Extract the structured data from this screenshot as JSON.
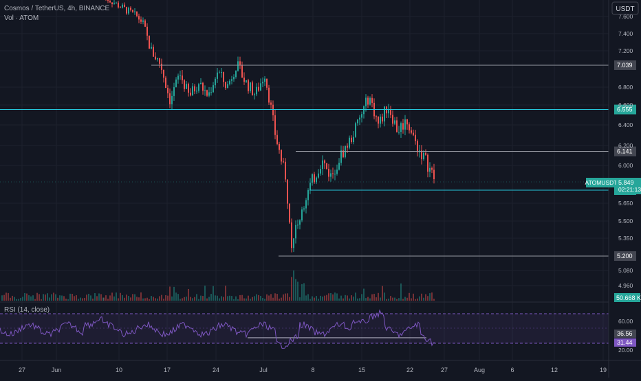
{
  "header": {
    "title": "Cosmos / TetherUS, 4h, BINANCE",
    "volume_label": "Vol · ATOM",
    "currency_button": "USDT"
  },
  "rsi_panel": {
    "label": "RSI (14, close)"
  },
  "colors": {
    "background": "#131722",
    "up": "#26a69a",
    "down": "#ef5350",
    "rsi_line": "#7e57c2",
    "rsi_band": "#7e57c2",
    "hline_gray": "#9598a1",
    "hline_cyan": "#26c6da",
    "grid": "#1e222d",
    "text": "#b2b5be"
  },
  "chart_data": [
    {
      "type": "candlestick",
      "title": "Cosmos / TetherUS, 4h, BINANCE",
      "symbol": "ATOMUSDT",
      "y_ticks": [
        "7.600",
        "7.400",
        "7.200",
        "6.800",
        "6.600",
        "6.400",
        "6.200",
        "6.000",
        "5.650",
        "5.500",
        "5.350",
        "5.080",
        "4.960"
      ],
      "x_ticks": [
        "27",
        "Jun",
        "10",
        "17",
        "24",
        "Jul",
        "8",
        "15",
        "22",
        "27",
        "Aug",
        "6",
        "12",
        "19"
      ],
      "horizontal_lines": [
        {
          "price": 7.039,
          "label": "7.039",
          "style": "gray"
        },
        {
          "price": 6.555,
          "label": "6.555",
          "style": "cyan"
        },
        {
          "price": 6.141,
          "label": "6.141",
          "style": "gray"
        },
        {
          "price": 5.772,
          "label": "5.772",
          "style": "cyan"
        },
        {
          "price": 5.2,
          "label": "5.200",
          "style": "gray"
        }
      ],
      "last_price": {
        "symbol": "ATOMUSDT",
        "value": "5.849",
        "countdown": "02:21:13"
      },
      "volume_label": "50.668 K",
      "price_path": [
        [
          0,
          7.95
        ],
        [
          0.04,
          7.75
        ],
        [
          0.08,
          7.55
        ],
        [
          0.1,
          7.2
        ],
        [
          0.12,
          7.05
        ],
        [
          0.14,
          6.65
        ],
        [
          0.16,
          6.95
        ],
        [
          0.18,
          6.7
        ],
        [
          0.2,
          6.85
        ],
        [
          0.22,
          6.7
        ],
        [
          0.24,
          6.98
        ],
        [
          0.26,
          6.8
        ],
        [
          0.28,
          7.05
        ],
        [
          0.3,
          6.85
        ],
        [
          0.32,
          6.72
        ],
        [
          0.34,
          6.95
        ],
        [
          0.36,
          6.35
        ],
        [
          0.38,
          5.95
        ],
        [
          0.4,
          5.3
        ],
        [
          0.42,
          5.65
        ],
        [
          0.44,
          5.85
        ],
        [
          0.46,
          6.05
        ],
        [
          0.48,
          5.9
        ],
        [
          0.5,
          6.1
        ],
        [
          0.52,
          6.25
        ],
        [
          0.54,
          6.45
        ],
        [
          0.56,
          6.7
        ],
        [
          0.58,
          6.4
        ],
        [
          0.6,
          6.6
        ],
        [
          0.62,
          6.35
        ],
        [
          0.64,
          6.45
        ],
        [
          0.66,
          6.2
        ],
        [
          0.68,
          6.05
        ],
        [
          0.7,
          5.85
        ],
        [
          1.0,
          5.85
        ]
      ]
    },
    {
      "type": "line",
      "title": "RSI (14, close)",
      "y_ticks": [
        "60.00",
        "20.00"
      ],
      "last_values": [
        "36.56",
        "31.44"
      ]
    }
  ]
}
